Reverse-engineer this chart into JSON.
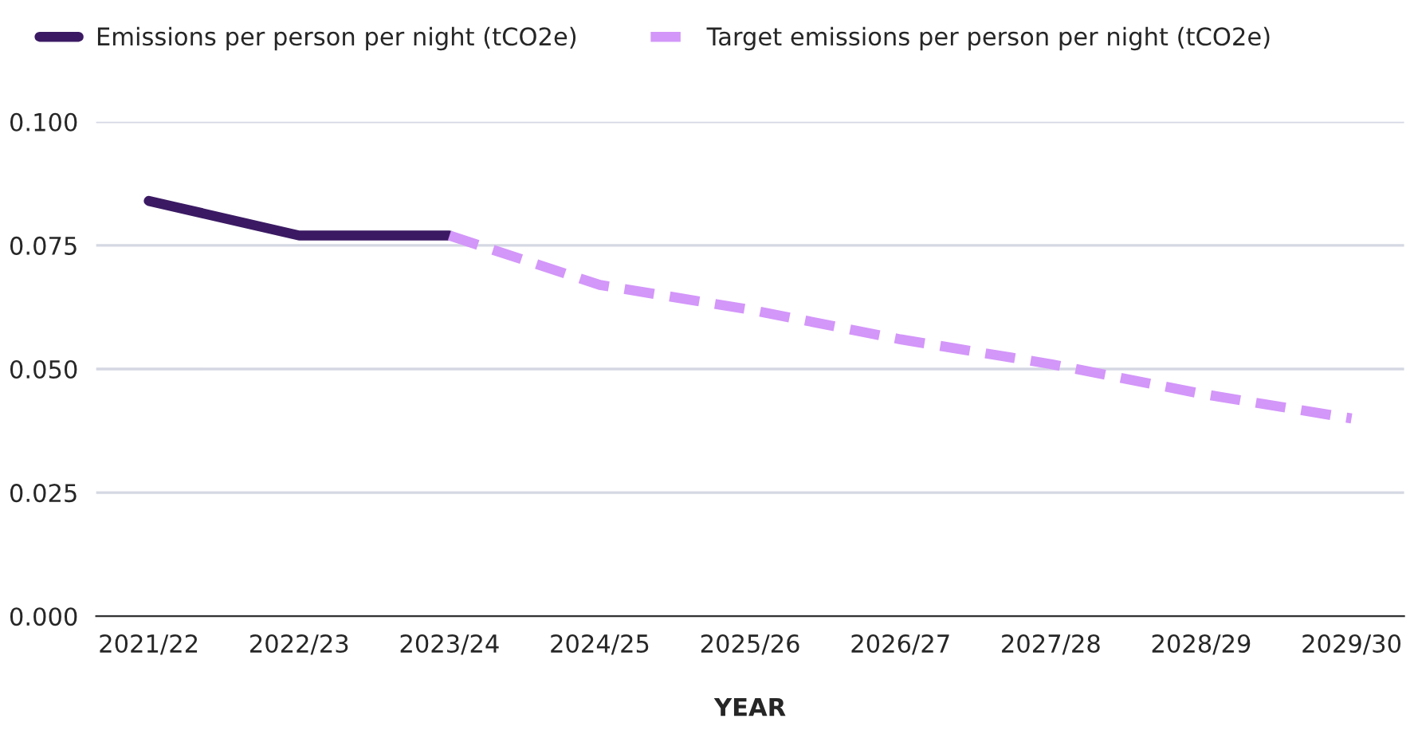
{
  "chart_data": {
    "type": "line",
    "xlabel": "YEAR",
    "categories": [
      "2021/22",
      "2022/23",
      "2023/24",
      "2024/25",
      "2025/26",
      "2026/27",
      "2027/28",
      "2028/29",
      "2029/30"
    ],
    "series": [
      {
        "name": "Emissions per person per night (tCO2e)",
        "color": "#3b1a63",
        "values": [
          0.084,
          0.077,
          0.077,
          null,
          null,
          null,
          null,
          null,
          null
        ],
        "line_style": "solid"
      },
      {
        "name": "Target emissions per person per night (tCO2e)",
        "color": "#d396f9",
        "values": [
          null,
          null,
          0.077,
          0.067,
          0.062,
          0.056,
          0.051,
          0.045,
          0.04
        ],
        "line_style": "dashed"
      }
    ],
    "ylim": [
      0,
      0.1
    ],
    "yticks": [
      {
        "value": 0,
        "label": "0.000"
      },
      {
        "value": 0.025,
        "label": "0.025"
      },
      {
        "value": 0.05,
        "label": "0.050"
      },
      {
        "value": 0.075,
        "label": "0.075"
      },
      {
        "value": 0.1,
        "label": "0.100"
      }
    ],
    "grid": "y",
    "legend": "top left",
    "marker": "none"
  }
}
